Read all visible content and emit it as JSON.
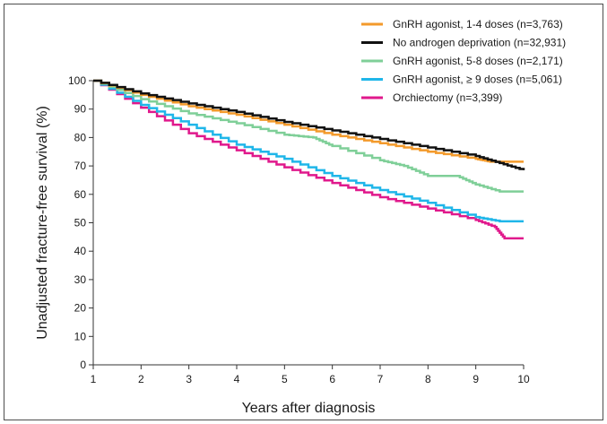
{
  "chart_data": {
    "type": "line",
    "title": "",
    "xlabel": "Years after diagnosis",
    "ylabel": "Unadjusted fracture-free survival (%)",
    "xlim": [
      1,
      10
    ],
    "ylim": [
      0,
      100
    ],
    "x_ticks": [
      1,
      2,
      3,
      4,
      5,
      6,
      7,
      8,
      9,
      10
    ],
    "y_ticks": [
      0,
      10,
      20,
      30,
      40,
      50,
      60,
      70,
      80,
      90,
      100
    ],
    "grid": false,
    "legend_position": "top-right",
    "series": [
      {
        "name": "GnRH agonist, 1-4 doses (n=3,763)",
        "color": "#f39a2b",
        "x": [
          1,
          2,
          3,
          4,
          5,
          6,
          7,
          8,
          9,
          9.3,
          10
        ],
        "y": [
          100,
          95,
          91,
          88,
          84.5,
          81,
          78,
          75,
          72.5,
          71.5,
          71.5
        ]
      },
      {
        "name": "No androgen deprivation (n=32,931)",
        "color": "#111111",
        "x": [
          1,
          2,
          3,
          4,
          5,
          6,
          7,
          8,
          9,
          9.5,
          10
        ],
        "y": [
          100,
          95.5,
          92,
          89,
          85.5,
          82.5,
          79.5,
          76.5,
          73.5,
          71,
          68.5
        ]
      },
      {
        "name": "GnRH agonist, 5-8 doses (n=2,171)",
        "color": "#7fcf98",
        "x": [
          1,
          2,
          3,
          4,
          5,
          5.6,
          6,
          7,
          7.5,
          8,
          8.6,
          9,
          9.5,
          10
        ],
        "y": [
          100,
          93.5,
          88.5,
          85,
          81,
          80,
          77,
          72,
          70,
          66.5,
          66.5,
          63.5,
          61,
          61
        ]
      },
      {
        "name": "GnRH agonist, ≥ 9 doses (n=5,061)",
        "color": "#1fb6e9",
        "x": [
          1,
          2,
          3,
          4,
          5,
          6,
          7,
          8,
          9,
          9.5,
          10
        ],
        "y": [
          100,
          91.5,
          84.5,
          77.5,
          72.5,
          66.5,
          61.5,
          57,
          52,
          50.5,
          50.5
        ]
      },
      {
        "name": "Orchiectomy (n=3,399)",
        "color": "#e0198c",
        "x": [
          1,
          2,
          3,
          4,
          5,
          6,
          7,
          8,
          9,
          9.4,
          9.6,
          10
        ],
        "y": [
          100,
          90.5,
          81.5,
          75.5,
          69.5,
          64,
          59,
          55,
          51,
          48.5,
          44.5,
          44.5
        ]
      }
    ]
  }
}
